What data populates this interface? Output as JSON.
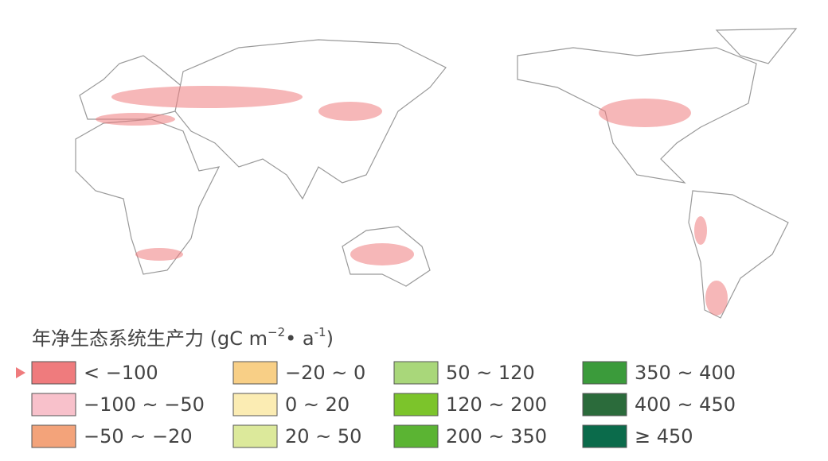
{
  "legend": {
    "title": [
      "年净生态系统生产力 (gC m",
      "−2",
      "• a",
      "-1",
      ")"
    ],
    "items": [
      {
        "label": "< −100",
        "color": "#ef7b7d"
      },
      {
        "label": "−100 ~ −50",
        "color": "#f8c1cb"
      },
      {
        "label": "−50 ~ −20",
        "color": "#f3a37a"
      },
      {
        "label": "−20 ~ 0",
        "color": "#f8cf86"
      },
      {
        "label": "0 ~ 20",
        "color": "#fbecb3"
      },
      {
        "label": "20 ~ 50",
        "color": "#dce99b"
      },
      {
        "label": "50 ~ 120",
        "color": "#a9d77a"
      },
      {
        "label": "120 ~ 200",
        "color": "#7cc42b"
      },
      {
        "label": "200 ~ 350",
        "color": "#5bb433"
      },
      {
        "label": "350 ~ 400",
        "color": "#3b9b3b"
      },
      {
        "label": "400 ~ 450",
        "color": "#2b6b3b"
      },
      {
        "label": "≥ 450",
        "color": "#0b6b4b"
      }
    ]
  }
}
